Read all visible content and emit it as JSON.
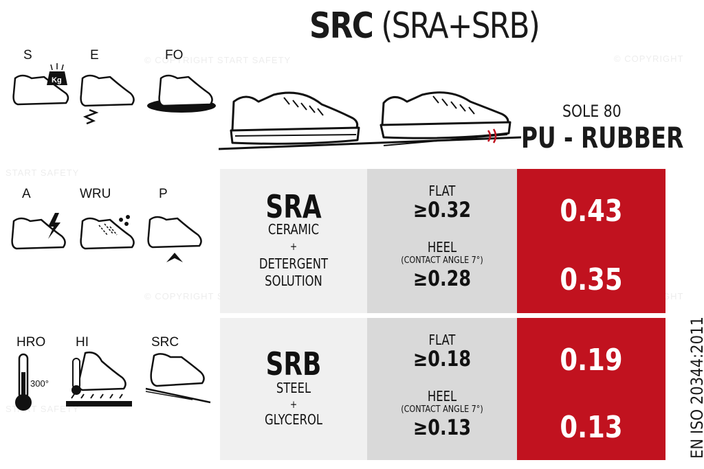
{
  "header": {
    "title_bold": "SRC",
    "title_light": "(SRA+SRB)",
    "sole_line1": "SOLE 80",
    "sole_line2": "PU - RUBBER"
  },
  "icons": [
    {
      "code": "S",
      "icon": "shoe-weight-icon"
    },
    {
      "code": "E",
      "icon": "shoe-energy-absorption-icon"
    },
    {
      "code": "FO",
      "icon": "shoe-fuel-oil-icon"
    },
    {
      "code": "A",
      "icon": "shoe-antistatic-icon"
    },
    {
      "code": "WRU",
      "icon": "shoe-water-resistant-icon"
    },
    {
      "code": "P",
      "icon": "shoe-penetration-icon"
    },
    {
      "code": "HRO",
      "icon": "thermometer-icon",
      "note": "300°"
    },
    {
      "code": "HI",
      "icon": "shoe-heat-insulation-icon"
    },
    {
      "code": "SRC",
      "icon": "shoe-slip-ramp-icon"
    }
  ],
  "table": {
    "rows": [
      {
        "name": "SRA",
        "desc": [
          "CERAMIC",
          "+",
          "DETERGENT",
          "SOLUTION"
        ],
        "flat_label": "FLAT",
        "flat_threshold": "≥0.32",
        "heel_label": "HEEL",
        "heel_note": "(CONTACT ANGLE 7°)",
        "heel_threshold": "≥0.28",
        "flat_value": "0.43",
        "heel_value": "0.35"
      },
      {
        "name": "SRB",
        "desc": [
          "STEEL",
          "+",
          "GLYCEROL"
        ],
        "flat_label": "FLAT",
        "flat_threshold": "≥0.18",
        "heel_label": "HEEL",
        "heel_note": "(CONTACT ANGLE 7°)",
        "heel_threshold": "≥0.13",
        "flat_value": "0.19",
        "heel_value": "0.13"
      }
    ]
  },
  "standard": "EN ISO 20344:2011",
  "watermarks": {
    "copyright": "© COPYRIGHT START SAFETY",
    "copyright_short": "© COPYRIGHT",
    "brand": "START SAFETY"
  },
  "colors": {
    "accent_red": "#c1121f",
    "light_gray": "#f0f0f0",
    "mid_gray": "#d9d9d9"
  }
}
